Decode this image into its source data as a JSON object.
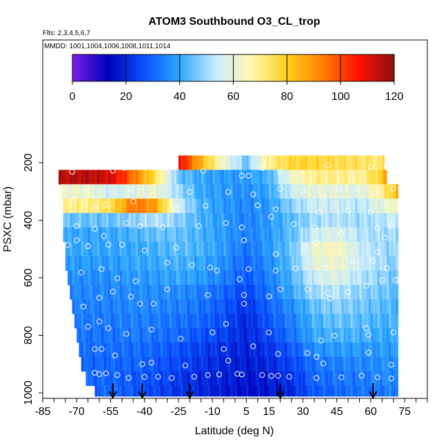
{
  "chart_data": {
    "type": "heatmap",
    "title": "ATOM3 Southbound O3_CL_trop",
    "flights_note": "Flts: 2,3,4,5,6,7",
    "dates_note": "MMDD: 1001,1004,1006,1008,1011,1014",
    "xlabel": "Latitude (deg N)",
    "ylabel": "PSXC (mbar)",
    "xlim": [
      -85,
      85
    ],
    "ylim": [
      1000,
      200
    ],
    "x_ticks": [
      "-85",
      "-70",
      "-55",
      "-40",
      "-25",
      "-10",
      "5",
      "15",
      "30",
      "45",
      "60",
      "75"
    ],
    "y_ticks": [
      "200",
      "400",
      "600",
      "800",
      "1000"
    ],
    "colorbar": {
      "range": [
        0,
        120
      ],
      "ticks": [
        "0",
        "20",
        "40",
        "60",
        "80",
        "100",
        "120"
      ],
      "colors": [
        "#7b1fe6",
        "#0000b8",
        "#0a50ff",
        "#2fa8ff",
        "#c8ecff",
        "#fff8b0",
        "#ffd020",
        "#ff8000",
        "#ff1000",
        "#8a1010"
      ]
    },
    "arrow_latitudes": [
      -54,
      -41,
      -20,
      20,
      61
    ],
    "latitude_grid": [
      -65,
      -55,
      -45,
      -35,
      -25,
      -15,
      -5,
      5,
      15,
      25,
      35,
      45,
      55,
      65,
      72
    ],
    "pressure_levels": [
      200,
      250,
      300,
      350,
      400,
      450,
      500,
      550,
      600,
      650,
      700,
      750,
      800,
      850,
      900,
      950,
      1000
    ],
    "o3_ppbv": [
      [
        null,
        null,
        null,
        null,
        110,
        85,
        62,
        45,
        70,
        78,
        78,
        76,
        74,
        72,
        100
      ],
      [
        115,
        112,
        95,
        75,
        45,
        40,
        38,
        38,
        42,
        62,
        70,
        70,
        68,
        80,
        110
      ],
      [
        62,
        55,
        58,
        62,
        50,
        40,
        38,
        36,
        40,
        55,
        60,
        60,
        58,
        70,
        85
      ],
      [
        70,
        75,
        95,
        88,
        55,
        42,
        38,
        35,
        38,
        48,
        55,
        55,
        52,
        60,
        65
      ],
      [
        45,
        45,
        48,
        52,
        48,
        42,
        38,
        34,
        38,
        44,
        50,
        52,
        50,
        52,
        55
      ],
      [
        40,
        40,
        42,
        45,
        45,
        42,
        38,
        34,
        38,
        44,
        55,
        58,
        52,
        50,
        50
      ],
      [
        40,
        40,
        40,
        42,
        44,
        42,
        38,
        32,
        38,
        45,
        62,
        65,
        55,
        50,
        48
      ],
      [
        38,
        38,
        40,
        40,
        42,
        40,
        36,
        30,
        36,
        44,
        60,
        62,
        55,
        50,
        46
      ],
      [
        36,
        36,
        38,
        38,
        40,
        38,
        34,
        28,
        34,
        42,
        55,
        58,
        52,
        48,
        45
      ],
      [
        35,
        35,
        36,
        36,
        36,
        34,
        30,
        25,
        32,
        40,
        50,
        52,
        48,
        46,
        44
      ],
      [
        34,
        34,
        35,
        35,
        34,
        32,
        28,
        22,
        30,
        36,
        45,
        48,
        46,
        44,
        42
      ],
      [
        33,
        33,
        34,
        33,
        32,
        30,
        26,
        20,
        28,
        34,
        42,
        45,
        44,
        42,
        42
      ],
      [
        32,
        32,
        33,
        32,
        30,
        27,
        24,
        20,
        25,
        32,
        40,
        42,
        42,
        40,
        40
      ],
      [
        31,
        31,
        31,
        30,
        27,
        24,
        21,
        19,
        22,
        28,
        36,
        38,
        38,
        38,
        38
      ],
      [
        30,
        30,
        30,
        28,
        25,
        22,
        20,
        18,
        20,
        25,
        32,
        34,
        35,
        36,
        36
      ],
      [
        30,
        30,
        28,
        26,
        23,
        20,
        19,
        17,
        18,
        22,
        30,
        32,
        33,
        35,
        35
      ],
      [
        30,
        30,
        28,
        25,
        22,
        20,
        18,
        16,
        17,
        20,
        28,
        30,
        32,
        33,
        34
      ]
    ],
    "sample_points": [
      [
        -62,
        930
      ],
      [
        -60,
        935
      ],
      [
        -57,
        932
      ],
      [
        -52,
        938
      ],
      [
        -47,
        948
      ],
      [
        -40,
        945
      ],
      [
        -34,
        944
      ],
      [
        -28,
        948
      ],
      [
        -18,
        944
      ],
      [
        -12,
        938
      ],
      [
        -7,
        936
      ],
      [
        1,
        934
      ],
      [
        3,
        936
      ],
      [
        12,
        938
      ],
      [
        16,
        941
      ],
      [
        19,
        940
      ],
      [
        24,
        944
      ],
      [
        36,
        948
      ],
      [
        47,
        946
      ],
      [
        56,
        940
      ],
      [
        63,
        946
      ],
      [
        69,
        950
      ],
      [
        -62,
        848
      ],
      [
        -59,
        848
      ],
      [
        -53,
        870
      ],
      [
        -41,
        900
      ],
      [
        -37,
        895
      ],
      [
        -22,
        905
      ],
      [
        -5,
        848
      ],
      [
        -3,
        888
      ],
      [
        8,
        838
      ],
      [
        19,
        865
      ],
      [
        32,
        862
      ],
      [
        36,
        875
      ],
      [
        39,
        898
      ],
      [
        59,
        860
      ],
      [
        69,
        902
      ],
      [
        -65,
        770
      ],
      [
        -60,
        752
      ],
      [
        -56,
        775
      ],
      [
        -48,
        795
      ],
      [
        -37,
        780
      ],
      [
        -24,
        812
      ],
      [
        -10,
        790
      ],
      [
        -4,
        760
      ],
      [
        15,
        790
      ],
      [
        38,
        818
      ],
      [
        44,
        801
      ],
      [
        58,
        775
      ],
      [
        59,
        798
      ],
      [
        70,
        790
      ],
      [
        -67,
        700
      ],
      [
        -60,
        670
      ],
      [
        -54,
        648
      ],
      [
        -46,
        666
      ],
      [
        -42,
        690
      ],
      [
        -36,
        690
      ],
      [
        -30,
        640
      ],
      [
        -12,
        660
      ],
      [
        4,
        690
      ],
      [
        4,
        660
      ],
      [
        15,
        665
      ],
      [
        20,
        640
      ],
      [
        32,
        640
      ],
      [
        41,
        652
      ],
      [
        42,
        672
      ],
      [
        50,
        650
      ],
      [
        58,
        628
      ],
      [
        65,
        608
      ],
      [
        -68,
        582
      ],
      [
        -59,
        570
      ],
      [
        -52,
        602
      ],
      [
        -44,
        612
      ],
      [
        -30,
        548
      ],
      [
        -19,
        556
      ],
      [
        -8,
        575
      ],
      [
        2,
        605
      ],
      [
        6,
        570
      ],
      [
        18,
        575
      ],
      [
        27,
        568
      ],
      [
        40,
        566
      ],
      [
        61,
        542
      ],
      [
        67,
        567
      ],
      [
        -74,
        486
      ],
      [
        -70,
        470
      ],
      [
        -65,
        490
      ],
      [
        -56,
        485
      ],
      [
        -50,
        485
      ],
      [
        -40,
        505
      ],
      [
        -26,
        495
      ],
      [
        -11,
        565
      ],
      [
        4,
        470
      ],
      [
        18,
        518
      ],
      [
        31,
        498
      ],
      [
        36,
        478
      ],
      [
        52,
        542
      ],
      [
        63,
        510
      ],
      [
        71,
        608
      ],
      [
        -70,
        420
      ],
      [
        -62,
        430
      ],
      [
        -58,
        455
      ],
      [
        -48,
        410
      ],
      [
        -42,
        420
      ],
      [
        -32,
        425
      ],
      [
        -16,
        420
      ],
      [
        -4,
        410
      ],
      [
        3,
        425
      ],
      [
        16,
        388
      ],
      [
        26,
        414
      ],
      [
        35,
        425
      ],
      [
        47,
        445
      ],
      [
        63,
        428
      ],
      [
        66,
        460
      ],
      [
        69,
        420
      ],
      [
        -78,
        345
      ],
      [
        -71,
        330
      ],
      [
        -62,
        358
      ],
      [
        -57,
        346
      ],
      [
        -45,
        335
      ],
      [
        -26,
        358
      ],
      [
        -13,
        350
      ],
      [
        10,
        348
      ],
      [
        18,
        362
      ],
      [
        37,
        372
      ],
      [
        50,
        366
      ],
      [
        60,
        372
      ],
      [
        67,
        345
      ],
      [
        -77,
        300
      ],
      [
        -66,
        288
      ],
      [
        -46,
        292
      ],
      [
        -20,
        302
      ],
      [
        -3,
        302
      ],
      [
        8,
        310
      ],
      [
        20,
        290
      ],
      [
        30,
        298
      ],
      [
        39,
        322
      ],
      [
        46,
        293
      ],
      [
        54,
        291
      ],
      [
        62,
        305
      ],
      [
        70,
        290
      ],
      [
        -79,
        220
      ],
      [
        -72,
        232
      ],
      [
        -66,
        212
      ],
      [
        -54,
        228
      ],
      [
        -49,
        218
      ],
      [
        -43,
        215
      ],
      [
        -33,
        210
      ],
      [
        -14,
        228
      ],
      [
        3,
        245
      ],
      [
        6,
        245
      ],
      [
        12,
        218
      ],
      [
        20,
        232
      ],
      [
        41,
        210
      ],
      [
        60,
        215
      ],
      [
        67,
        210
      ]
    ]
  }
}
